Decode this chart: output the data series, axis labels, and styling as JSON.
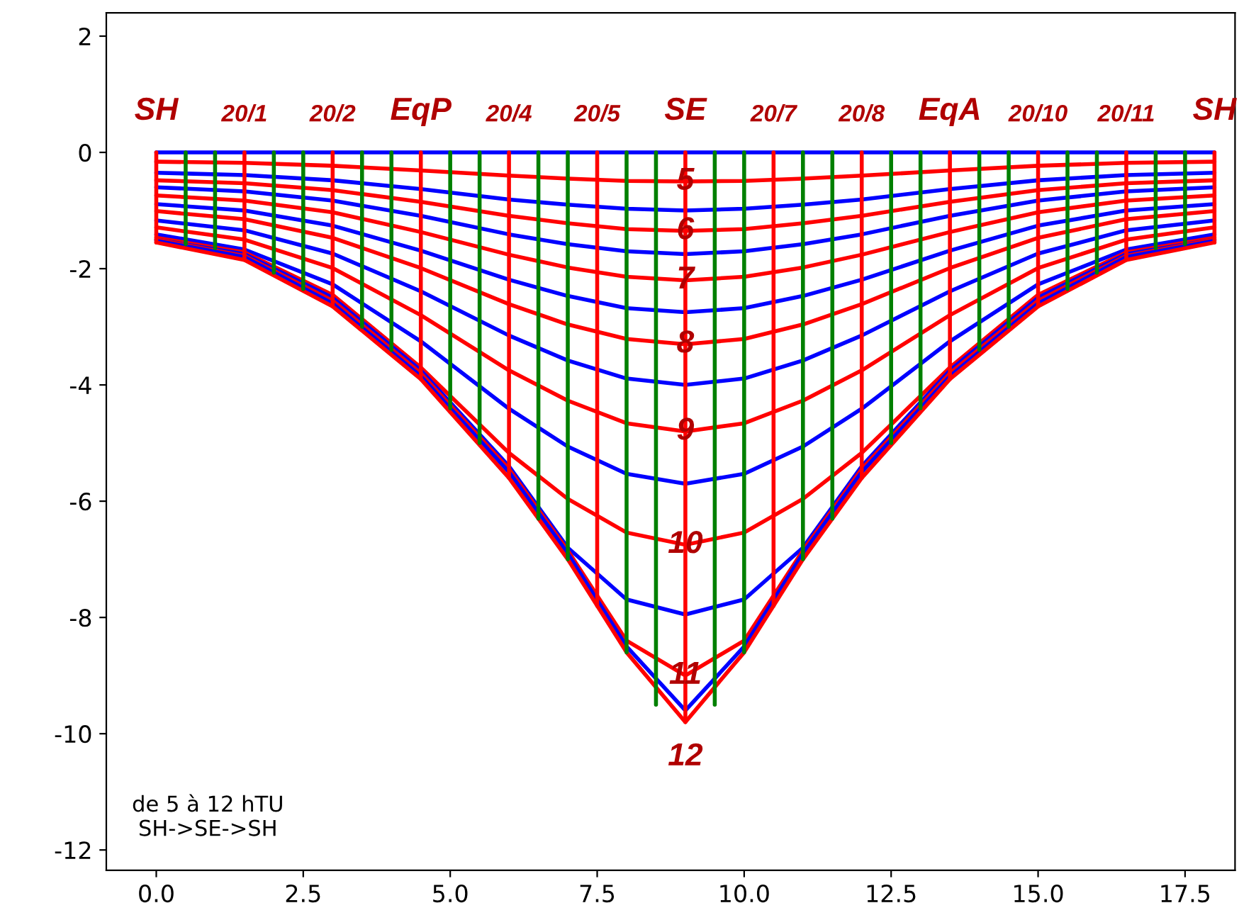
{
  "chart_data": {
    "type": "line",
    "x": [
      0,
      1.5,
      3,
      4.5,
      6,
      7,
      8,
      9,
      10,
      11,
      12,
      13.5,
      15,
      16.5,
      18
    ],
    "series": [
      {
        "color": "#0000ff",
        "values": [
          0,
          0,
          0,
          0,
          0,
          0,
          0,
          0,
          0,
          0,
          0,
          0,
          0,
          0,
          0
        ]
      },
      {
        "color": "#ff0000",
        "values": [
          -0.16,
          -0.18,
          -0.23,
          -0.31,
          -0.4,
          -0.45,
          -0.49,
          -0.5,
          -0.49,
          -0.45,
          -0.4,
          -0.31,
          -0.23,
          -0.18,
          -0.16
        ]
      },
      {
        "color": "#0000ff",
        "values": [
          -0.35,
          -0.39,
          -0.48,
          -0.63,
          -0.81,
          -0.9,
          -0.97,
          -1.0,
          -0.97,
          -0.9,
          -0.81,
          -0.63,
          -0.48,
          -0.39,
          -0.35
        ]
      },
      {
        "color": "#ff0000",
        "values": [
          -0.48,
          -0.53,
          -0.65,
          -0.85,
          -1.09,
          -1.22,
          -1.32,
          -1.35,
          -1.32,
          -1.22,
          -1.09,
          -0.85,
          -0.65,
          -0.53,
          -0.48
        ]
      },
      {
        "color": "#0000ff",
        "values": [
          -0.6,
          -0.67,
          -0.83,
          -1.09,
          -1.41,
          -1.58,
          -1.7,
          -1.75,
          -1.7,
          -1.58,
          -1.41,
          -1.09,
          -0.83,
          -0.67,
          -0.6
        ]
      },
      {
        "color": "#ff0000",
        "values": [
          -0.74,
          -0.83,
          -1.03,
          -1.37,
          -1.76,
          -1.98,
          -2.14,
          -2.2,
          -2.14,
          -1.98,
          -1.76,
          -1.37,
          -1.03,
          -0.83,
          -0.74
        ]
      },
      {
        "color": "#0000ff",
        "values": [
          -0.89,
          -1.0,
          -1.26,
          -1.69,
          -2.19,
          -2.47,
          -2.68,
          -2.75,
          -2.68,
          -2.47,
          -2.19,
          -1.69,
          -1.26,
          -1.0,
          -0.89
        ]
      },
      {
        "color": "#ff0000",
        "values": [
          -1.01,
          -1.15,
          -1.47,
          -1.99,
          -2.61,
          -2.96,
          -3.21,
          -3.3,
          -3.21,
          -2.96,
          -2.61,
          -1.99,
          -1.47,
          -1.15,
          -1.01
        ]
      },
      {
        "color": "#0000ff",
        "values": [
          -1.17,
          -1.34,
          -1.74,
          -2.39,
          -3.15,
          -3.58,
          -3.89,
          -4.0,
          -3.89,
          -3.58,
          -3.15,
          -2.39,
          -1.74,
          -1.34,
          -1.17
        ]
      },
      {
        "color": "#ff0000",
        "values": [
          -1.29,
          -1.5,
          -1.99,
          -2.8,
          -3.75,
          -4.27,
          -4.66,
          -4.8,
          -4.66,
          -4.27,
          -3.75,
          -2.8,
          -1.99,
          -1.5,
          -1.29
        ]
      },
      {
        "color": "#0000ff",
        "values": [
          -1.41,
          -1.67,
          -2.27,
          -3.25,
          -4.41,
          -5.06,
          -5.53,
          -5.7,
          -5.53,
          -5.06,
          -4.41,
          -3.25,
          -2.27,
          -1.67,
          -1.41
        ]
      },
      {
        "color": "#ff0000",
        "values": [
          -1.47,
          -1.72,
          -2.45,
          -3.7,
          -5.17,
          -5.96,
          -6.54,
          -6.75,
          -6.54,
          -5.96,
          -5.17,
          -3.7,
          -2.45,
          -1.72,
          -1.47
        ]
      },
      {
        "color": "#0000ff",
        "values": [
          -1.5,
          -1.75,
          -2.5,
          -3.75,
          -5.4,
          -6.8,
          -7.69,
          -7.95,
          -7.69,
          -6.8,
          -5.4,
          -3.75,
          -2.5,
          -1.75,
          -1.5
        ]
      },
      {
        "color": "#ff0000",
        "values": [
          -1.5,
          -1.78,
          -2.55,
          -3.8,
          -5.45,
          -6.85,
          -8.4,
          -9.0,
          -8.4,
          -6.85,
          -5.45,
          -3.8,
          -2.55,
          -1.78,
          -1.5
        ]
      },
      {
        "color": "#0000ff",
        "values": [
          -1.52,
          -1.8,
          -2.6,
          -3.85,
          -5.5,
          -6.9,
          -8.5,
          -9.6,
          -8.5,
          -6.9,
          -5.5,
          -3.85,
          -2.6,
          -1.8,
          -1.52
        ]
      },
      {
        "color": "#ff0000",
        "values": [
          -1.55,
          -1.85,
          -2.65,
          -3.9,
          -5.6,
          -7.0,
          -8.6,
          -9.8,
          -8.6,
          -7.0,
          -5.6,
          -3.9,
          -2.65,
          -1.85,
          -1.55
        ]
      },
      {
        "color": "#ff0000",
        "x": [
          0,
          0
        ],
        "values": [
          0,
          -1.55
        ]
      },
      {
        "color": "#008000",
        "x": [
          0.5,
          0.5
        ],
        "values": [
          0,
          -1.58
        ]
      },
      {
        "color": "#008000",
        "x": [
          1,
          1
        ],
        "values": [
          0,
          -1.65
        ]
      },
      {
        "color": "#ff0000",
        "x": [
          1.5,
          1.5
        ],
        "values": [
          0,
          -1.85
        ]
      },
      {
        "color": "#008000",
        "x": [
          2,
          2
        ],
        "values": [
          0,
          -2.07
        ]
      },
      {
        "color": "#008000",
        "x": [
          2.5,
          2.5
        ],
        "values": [
          0,
          -2.35
        ]
      },
      {
        "color": "#ff0000",
        "x": [
          3,
          3
        ],
        "values": [
          0,
          -2.65
        ]
      },
      {
        "color": "#008000",
        "x": [
          3.5,
          3.5
        ],
        "values": [
          0,
          -3.0
        ]
      },
      {
        "color": "#008000",
        "x": [
          4,
          4
        ],
        "values": [
          0,
          -3.4
        ]
      },
      {
        "color": "#ff0000",
        "x": [
          4.5,
          4.5
        ],
        "values": [
          0,
          -3.9
        ]
      },
      {
        "color": "#008000",
        "x": [
          5,
          5
        ],
        "values": [
          0,
          -4.4
        ]
      },
      {
        "color": "#008000",
        "x": [
          5.5,
          5.5
        ],
        "values": [
          0,
          -5.0
        ]
      },
      {
        "color": "#ff0000",
        "x": [
          6,
          6
        ],
        "values": [
          0,
          -5.6
        ]
      },
      {
        "color": "#008000",
        "x": [
          6.5,
          6.5
        ],
        "values": [
          0,
          -6.3
        ]
      },
      {
        "color": "#008000",
        "x": [
          7,
          7
        ],
        "values": [
          0,
          -7.0
        ]
      },
      {
        "color": "#ff0000",
        "x": [
          7.5,
          7.5
        ],
        "values": [
          0,
          -7.8
        ]
      },
      {
        "color": "#008000",
        "x": [
          8,
          8
        ],
        "values": [
          0,
          -8.6
        ]
      },
      {
        "color": "#008000",
        "x": [
          8.5,
          8.5
        ],
        "values": [
          0,
          -9.5
        ]
      },
      {
        "color": "#ff0000",
        "x": [
          9,
          9
        ],
        "values": [
          0,
          -9.8
        ]
      },
      {
        "color": "#008000",
        "x": [
          9.5,
          9.5
        ],
        "values": [
          0,
          -9.5
        ]
      },
      {
        "color": "#008000",
        "x": [
          10,
          10
        ],
        "values": [
          0,
          -8.6
        ]
      },
      {
        "color": "#ff0000",
        "x": [
          10.5,
          10.5
        ],
        "values": [
          0,
          -7.8
        ]
      },
      {
        "color": "#008000",
        "x": [
          11,
          11
        ],
        "values": [
          0,
          -7.0
        ]
      },
      {
        "color": "#008000",
        "x": [
          11.5,
          11.5
        ],
        "values": [
          0,
          -6.3
        ]
      },
      {
        "color": "#ff0000",
        "x": [
          12,
          12
        ],
        "values": [
          0,
          -5.6
        ]
      },
      {
        "color": "#008000",
        "x": [
          12.5,
          12.5
        ],
        "values": [
          0,
          -5.0
        ]
      },
      {
        "color": "#008000",
        "x": [
          13,
          13
        ],
        "values": [
          0,
          -4.4
        ]
      },
      {
        "color": "#ff0000",
        "x": [
          13.5,
          13.5
        ],
        "values": [
          0,
          -3.9
        ]
      },
      {
        "color": "#008000",
        "x": [
          14,
          14
        ],
        "values": [
          0,
          -3.4
        ]
      },
      {
        "color": "#008000",
        "x": [
          14.5,
          14.5
        ],
        "values": [
          0,
          -3.0
        ]
      },
      {
        "color": "#ff0000",
        "x": [
          15,
          15
        ],
        "values": [
          0,
          -2.65
        ]
      },
      {
        "color": "#008000",
        "x": [
          15.5,
          15.5
        ],
        "values": [
          0,
          -2.35
        ]
      },
      {
        "color": "#008000",
        "x": [
          16,
          16
        ],
        "values": [
          0,
          -2.07
        ]
      },
      {
        "color": "#ff0000",
        "x": [
          16.5,
          16.5
        ],
        "values": [
          0,
          -1.85
        ]
      },
      {
        "color": "#008000",
        "x": [
          17,
          17
        ],
        "values": [
          0,
          -1.65
        ]
      },
      {
        "color": "#008000",
        "x": [
          17.5,
          17.5
        ],
        "values": [
          0,
          -1.58
        ]
      },
      {
        "color": "#ff0000",
        "x": [
          18,
          18
        ],
        "values": [
          0,
          -1.55
        ]
      }
    ],
    "annotations": [
      "SH",
      "20/1",
      "20/2",
      "EqP",
      "20/4",
      "20/5",
      "SE",
      "20/7",
      "20/8",
      "EqA",
      "20/10",
      "20/11",
      "SH",
      "5",
      "6",
      "7",
      "8",
      "9",
      "10",
      "11",
      "12",
      "de 5 à 12 hTU\nSH->SE->SH"
    ],
    "xlim": [
      -0.85,
      18.35
    ],
    "ylim": [
      -12.35,
      2.4
    ],
    "xticks": [
      {
        "value": 0,
        "label": "0.0"
      },
      {
        "value": 2.5,
        "label": "2.5"
      },
      {
        "value": 5,
        "label": "5.0"
      },
      {
        "value": 7.5,
        "label": "7.5"
      },
      {
        "value": 10,
        "label": "10.0"
      },
      {
        "value": 12.5,
        "label": "12.5"
      },
      {
        "value": 15,
        "label": "15.0"
      },
      {
        "value": 17.5,
        "label": "17.5"
      }
    ],
    "yticks": [
      -12,
      -10,
      -8,
      -6,
      -4,
      -2,
      0,
      2
    ]
  }
}
